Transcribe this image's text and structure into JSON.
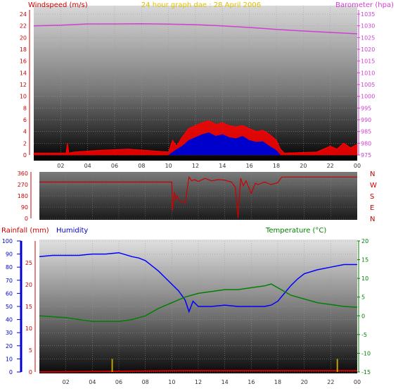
{
  "colors": {
    "wind": "#ff0000",
    "gust_fill": "#0000cc",
    "baro": "#d040d0",
    "title": "#e0c000",
    "dir": "#cc0000",
    "humidity": "#0000ff",
    "temperature": "#008000",
    "rain": "#cc0000",
    "rain_event": "#c0a000",
    "axis_blue": "#0000cc",
    "temp_axis": "#008000"
  },
  "chart_data": [
    {
      "type": "line",
      "title": "24 hour graph dae : 28 April 2006",
      "left_axis_label": "Windspeed (m/s)",
      "right_axis_label": "Barometer (hpa)",
      "left_ticks": [
        "24",
        "22",
        "20",
        "18",
        "16",
        "14",
        "12",
        "10",
        "8",
        "6",
        "4",
        "2",
        "0"
      ],
      "right_ticks": [
        "1035",
        "1030",
        "1025",
        "1020",
        "1015",
        "1010",
        "1005",
        "1000",
        "995",
        "990",
        "985",
        "980",
        "975"
      ],
      "ylim_wind": [
        0,
        24
      ],
      "ylim_baro": [
        975,
        1035
      ],
      "x_ticks": [
        "02",
        "04",
        "06",
        "08",
        "10",
        "12",
        "14",
        "16",
        "18",
        "20",
        "22",
        "00"
      ],
      "barometer": {
        "x": [
          0,
          2,
          4,
          6,
          8,
          10,
          12,
          14,
          16,
          18,
          20,
          22,
          24
        ],
        "values": [
          1030.0,
          1030.3,
          1030.8,
          1030.8,
          1030.9,
          1030.7,
          1030.5,
          1030.0,
          1029.3,
          1028.5,
          1027.8,
          1027.2,
          1026.6
        ]
      },
      "windspeed": {
        "x": [
          0,
          2.4,
          2.5,
          2.6,
          3.0,
          5.0,
          7.0,
          10.0,
          10.3,
          10.6,
          11.0,
          11.5,
          12.0,
          12.5,
          13.0,
          13.5,
          14.0,
          14.5,
          15.0,
          15.5,
          16.0,
          16.5,
          17.0,
          17.5,
          18.0,
          18.3,
          18.6,
          21.0,
          22.0,
          22.5,
          23.0,
          23.5,
          24.0
        ],
        "values": [
          0.3,
          0.3,
          2.0,
          0.3,
          0.5,
          0.8,
          1.0,
          0.5,
          2.5,
          1.5,
          3.0,
          4.5,
          5.0,
          5.5,
          5.8,
          5.2,
          5.5,
          5.0,
          4.8,
          5.0,
          4.5,
          4.0,
          4.2,
          3.5,
          2.5,
          1.0,
          0.3,
          0.5,
          1.5,
          1.0,
          2.0,
          1.2,
          1.8
        ]
      },
      "gust": {
        "x": [
          10.0,
          10.5,
          11.0,
          11.5,
          12.0,
          12.5,
          13.0,
          13.5,
          14.0,
          14.5,
          15.0,
          15.5,
          16.0,
          16.5,
          17.0,
          17.5,
          18.0,
          18.3
        ],
        "values": [
          0.0,
          0.8,
          1.5,
          2.5,
          3.0,
          3.5,
          3.8,
          3.2,
          3.5,
          3.0,
          2.8,
          3.2,
          2.5,
          2.2,
          2.3,
          1.5,
          0.8,
          0.0
        ]
      }
    },
    {
      "type": "line",
      "left_ticks": [
        "360",
        "270",
        "180",
        "90",
        "0"
      ],
      "right_labels": [
        "N",
        "W",
        "S",
        "E",
        "N"
      ],
      "ylim": [
        0,
        360
      ],
      "direction": {
        "x": [
          0,
          10.0,
          10.05,
          10.2,
          10.3,
          10.4,
          10.6,
          11.0,
          11.3,
          11.5,
          11.7,
          12.0,
          12.5,
          13.0,
          13.5,
          14.0,
          14.5,
          14.8,
          15.0,
          15.2,
          15.4,
          15.6,
          16.0,
          16.3,
          16.5,
          17.0,
          17.5,
          18.0,
          18.3,
          24.0
        ],
        "values": [
          290,
          290,
          60,
          210,
          150,
          180,
          140,
          120,
          330,
          300,
          310,
          295,
          320,
          300,
          310,
          305,
          290,
          250,
          5,
          320,
          260,
          300,
          200,
          280,
          270,
          290,
          270,
          285,
          330,
          330
        ]
      }
    },
    {
      "type": "line",
      "rainfall_label": "Rainfall (mm)",
      "humidity_label": "Humidity",
      "temperature_label": "Temperature (°C)",
      "humidity_ticks": [
        "100",
        "90",
        "80",
        "70",
        "60",
        "50",
        "40",
        "30",
        "20",
        "10",
        "0"
      ],
      "rain_ticks": [
        "25",
        "20",
        "15",
        "10",
        "5",
        "0"
      ],
      "temp_ticks": [
        "20",
        "15",
        "10",
        "5",
        "0",
        "-5",
        "-10",
        "-15"
      ],
      "ylim_humidity": [
        0,
        100
      ],
      "ylim_rain": [
        0,
        30
      ],
      "ylim_temp": [
        -15,
        20
      ],
      "x_ticks": [
        "02",
        "04",
        "06",
        "08",
        "10",
        "12",
        "14",
        "16",
        "18",
        "20",
        "22",
        "00"
      ],
      "humidity": {
        "x": [
          0,
          1,
          2,
          3,
          4,
          5,
          6,
          7,
          7.5,
          8,
          8.5,
          9,
          9.5,
          10,
          10.5,
          11,
          11.3,
          11.6,
          12,
          13,
          14,
          15,
          16,
          17,
          17.5,
          18,
          18.5,
          19,
          19.5,
          20,
          21,
          22,
          23,
          24
        ],
        "values": [
          88,
          89,
          89,
          89,
          90,
          90,
          91,
          88,
          87,
          85,
          81,
          77,
          72,
          67,
          62,
          55,
          46,
          54,
          50,
          50,
          51,
          50,
          50,
          50,
          51,
          54,
          60,
          66,
          71,
          75,
          78,
          80,
          82,
          82
        ]
      },
      "temperature": {
        "x": [
          0,
          2,
          4,
          5,
          6,
          7,
          8,
          9,
          10,
          11,
          12,
          13,
          14,
          15,
          16,
          17,
          17.5,
          18,
          19,
          20,
          21,
          22,
          23,
          24
        ],
        "values": [
          0,
          -0.5,
          -1.5,
          -1.5,
          -1.5,
          -1.0,
          0.0,
          2.0,
          3.5,
          5.0,
          6.0,
          6.5,
          7.0,
          7.0,
          7.5,
          8.0,
          8.5,
          7.5,
          5.5,
          4.5,
          3.5,
          3.0,
          2.5,
          2.3
        ]
      },
      "rainfall": {
        "x": [
          0,
          11,
          24
        ],
        "values": [
          0,
          0.3,
          0.3
        ]
      },
      "rain_events": {
        "x": [
          5.5,
          22.5
        ],
        "values": [
          3,
          3
        ]
      }
    }
  ]
}
